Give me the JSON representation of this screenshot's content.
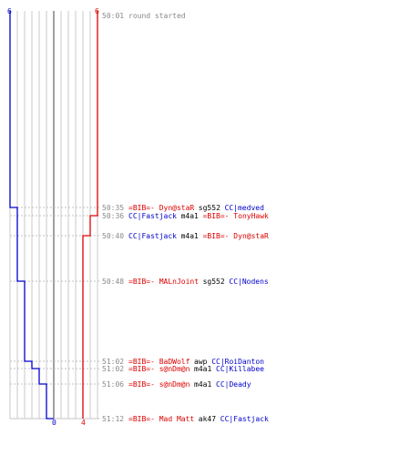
{
  "chart_data": {
    "type": "line",
    "series": [
      {
        "team": "CC",
        "color": "#0000cc",
        "values": [
          6,
          5,
          4,
          3,
          2,
          1,
          0
        ]
      },
      {
        "team": "BIB",
        "color": "#dd0000",
        "values": [
          6,
          5,
          5,
          5,
          4,
          4,
          4
        ]
      }
    ],
    "axis": {
      "cc_start": "6",
      "bib_start": "6",
      "cc_end": "0",
      "bib_end": "4"
    },
    "events": [
      {
        "time": "50:01",
        "parts": [
          {
            "text": "round started",
            "color": "#888888"
          }
        ]
      },
      {
        "time": "50:35",
        "parts": [
          {
            "text": "=BIB=- Dyn@staR",
            "color": "#dd0000"
          },
          {
            "text": "sg552",
            "color": "#000000"
          },
          {
            "text": "CC|medved",
            "color": "#0000cc"
          }
        ]
      },
      {
        "time": "50:36",
        "parts": [
          {
            "text": "CC|Fastjack",
            "color": "#0000cc"
          },
          {
            "text": "m4a1",
            "color": "#000000"
          },
          {
            "text": "=BIB=- TonyHawk",
            "color": "#dd0000"
          }
        ]
      },
      {
        "time": "50:40",
        "parts": [
          {
            "text": "CC|Fastjack",
            "color": "#0000cc"
          },
          {
            "text": "m4a1",
            "color": "#000000"
          },
          {
            "text": "=BIB=- Dyn@staR",
            "color": "#dd0000"
          }
        ]
      },
      {
        "time": "50:48",
        "parts": [
          {
            "text": "=BIB=- MALnJoint",
            "color": "#dd0000"
          },
          {
            "text": "sg552",
            "color": "#000000"
          },
          {
            "text": "CC|Nodens",
            "color": "#0000cc"
          }
        ]
      },
      {
        "time": "51:02",
        "parts": [
          {
            "text": "=BIB=- BaDWolf",
            "color": "#dd0000"
          },
          {
            "text": "awp",
            "color": "#000000"
          },
          {
            "text": "CC|RoiDanton",
            "color": "#0000cc"
          }
        ]
      },
      {
        "time": "51:02",
        "parts": [
          {
            "text": "=BIB=- s@nDm@n",
            "color": "#dd0000"
          },
          {
            "text": "m4a1",
            "color": "#000000"
          },
          {
            "text": "CC|Killabee",
            "color": "#0000cc"
          }
        ]
      },
      {
        "time": "51:06",
        "parts": [
          {
            "text": "=BIB=- s@nDm@n",
            "color": "#dd0000"
          },
          {
            "text": "m4a1",
            "color": "#000000"
          },
          {
            "text": "CC|Deady",
            "color": "#0000cc"
          }
        ]
      },
      {
        "time": "51:12",
        "parts": [
          {
            "text": "=BIB=- Mad Matt",
            "color": "#dd0000"
          },
          {
            "text": "ak47",
            "color": "#000000"
          },
          {
            "text": "CC|Fastjack",
            "color": "#0000cc"
          }
        ]
      }
    ],
    "grid": true,
    "colors": {
      "grid": "#c8c8c8",
      "center": "#808080",
      "dashed": "#c0c0c0",
      "time": "#888888"
    }
  }
}
